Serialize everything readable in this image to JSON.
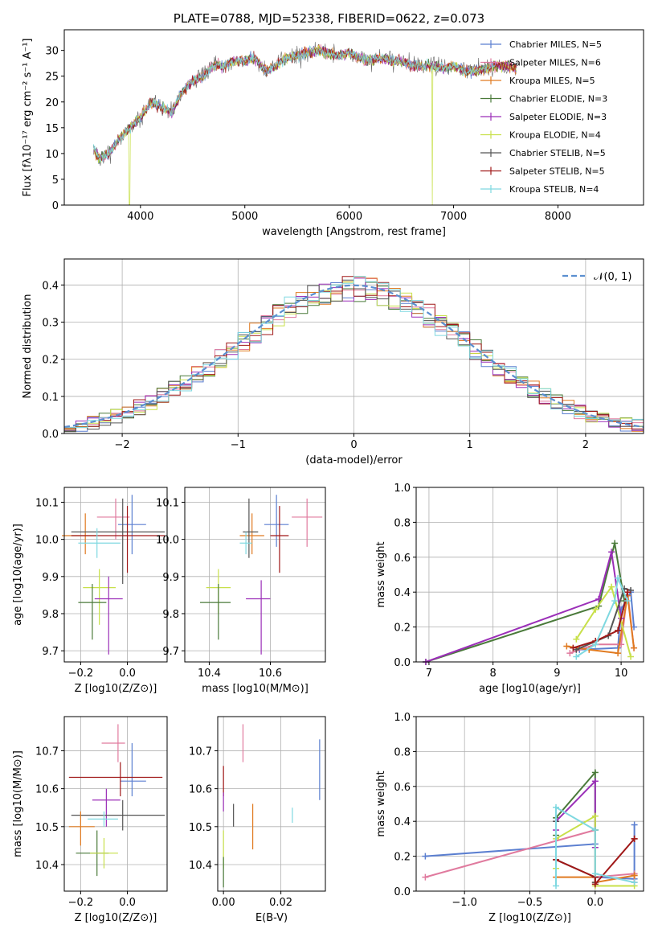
{
  "chart_data": [
    {
      "id": "spectrum",
      "type": "line",
      "title": "PLATE=0788, MJD=52338, FIBERID=0622, z=0.073",
      "xlabel": "wavelength [Angstrom, rest frame]",
      "ylabel": "Flux [fλ10⁻¹⁷ erg cm⁻² s⁻¹ A⁻¹]",
      "xlim": [
        3270,
        8820
      ],
      "ylim": [
        0,
        34
      ],
      "xticks": [
        4000,
        5000,
        6000,
        7000,
        8000
      ],
      "yticks": [
        0,
        5,
        10,
        15,
        20,
        25,
        30
      ],
      "grid": false,
      "legend_position": "top-right",
      "continuum": {
        "x": [
          3550,
          3600,
          3700,
          3800,
          3900,
          4000,
          4100,
          4200,
          4300,
          4400,
          4500,
          4600,
          4700,
          4800,
          4900,
          5000,
          5100,
          5200,
          5300,
          5400,
          5500,
          5600,
          5700,
          5800,
          5900,
          6000,
          6100,
          6200,
          6300,
          6400,
          6500,
          6600,
          6700,
          6800,
          6900,
          7000,
          7100,
          7200,
          7300,
          7400,
          7500,
          7600
        ],
        "y": [
          11,
          9,
          10,
          13,
          15,
          17,
          20,
          19,
          18,
          22,
          24,
          25,
          27,
          27,
          28,
          28,
          28.5,
          26,
          27,
          28.5,
          29,
          29.5,
          30,
          29.5,
          29,
          29.5,
          28.5,
          28,
          28.5,
          28,
          28,
          27,
          27,
          27,
          26.5,
          27,
          26,
          26,
          26.5,
          27,
          27,
          26.5
        ]
      },
      "series": [
        {
          "name": "Chabrier MILES, N_SSP=5",
          "color": "#5b7fd0"
        },
        {
          "name": "Salpeter MILES, N_SSP=6",
          "color": "#e07a9e"
        },
        {
          "name": "Kroupa MILES, N_SSP=5",
          "color": "#e07a20"
        },
        {
          "name": "Chabrier ELODIE, N_SSP=3",
          "color": "#4a7a3a"
        },
        {
          "name": "Salpeter ELODIE, N_SSP=3",
          "color": "#9b2fb8"
        },
        {
          "name": "Kroupa ELODIE, N_SSP=4",
          "color": "#c8e04a"
        },
        {
          "name": "Chabrier STELIB, N_SSP=5",
          "color": "#555555"
        },
        {
          "name": "Salpeter STELIB, N_SSP=5",
          "color": "#a01818"
        },
        {
          "name": "Kroupa STELIB, N_SSP=4",
          "color": "#7fd8e0"
        }
      ]
    },
    {
      "id": "residuals",
      "type": "line",
      "xlabel": "(data-model)/error",
      "ylabel": "Normed distribution",
      "xlim": [
        -2.5,
        2.5
      ],
      "ylim": [
        0,
        0.47
      ],
      "xticks": [
        -2,
        -1,
        0,
        1,
        2
      ],
      "yticks": [
        0.0,
        0.1,
        0.2,
        0.3,
        0.4
      ],
      "grid": true,
      "legend_position": "top-right",
      "legend": "𝒩(0, 1)",
      "gaussian": {
        "mean": 0,
        "sigma": 1,
        "color": "#5b8fd0"
      }
    },
    {
      "id": "age-vs-Z",
      "type": "scatter",
      "xlabel": "Z [log10(Z/Z⊙)]",
      "ylabel": "age  [log10(age/yr)]",
      "xlim": [
        -0.27,
        0.17
      ],
      "ylim": [
        9.67,
        10.14
      ],
      "xticks": [
        -0.2,
        0.0
      ],
      "yticks": [
        9.7,
        9.8,
        9.9,
        10.0,
        10.1
      ],
      "grid": true,
      "points": [
        {
          "x": -0.18,
          "y": 10.01,
          "xerr": [
            0.1,
            0.05
          ],
          "yerr": [
            0.05,
            0.06
          ],
          "series": 2
        },
        {
          "x": -0.05,
          "y": 10.06,
          "xerr": [
            0.08,
            0.06
          ],
          "yerr": [
            0.06,
            0.05
          ],
          "series": 1
        },
        {
          "x": 0.02,
          "y": 10.04,
          "xerr": [
            0.06,
            0.06
          ],
          "yerr": [
            0.08,
            0.08
          ],
          "series": 0
        },
        {
          "x": -0.02,
          "y": 10.02,
          "xerr": [
            0.22,
            0.18
          ],
          "yerr": [
            0.14,
            0.09
          ],
          "series": 6
        },
        {
          "x": 0.0,
          "y": 10.01,
          "xerr": [
            0.24,
            0.16
          ],
          "yerr": [
            0.1,
            0.08
          ],
          "series": 7
        },
        {
          "x": -0.13,
          "y": 9.99,
          "xerr": [
            0.08,
            0.1
          ],
          "yerr": [
            0.04,
            0.04
          ],
          "series": 8
        },
        {
          "x": -0.12,
          "y": 9.87,
          "xerr": [
            0.07,
            0.07
          ],
          "yerr": [
            0.1,
            0.05
          ],
          "series": 5
        },
        {
          "x": -0.08,
          "y": 9.84,
          "xerr": [
            0.06,
            0.06
          ],
          "yerr": [
            0.15,
            0.06
          ],
          "series": 4
        },
        {
          "x": -0.15,
          "y": 9.83,
          "xerr": [
            0.06,
            0.06
          ],
          "yerr": [
            0.1,
            0.05
          ],
          "series": 3
        }
      ]
    },
    {
      "id": "age-vs-mass",
      "type": "scatter",
      "xlabel": "mass [log10(M/M⊙)]",
      "ylabel": "",
      "xlim": [
        10.32,
        10.78
      ],
      "ylim": [
        9.67,
        10.14
      ],
      "xticks": [
        10.4,
        10.6
      ],
      "yticks": [
        9.7,
        9.8,
        9.9,
        10.0,
        10.1
      ],
      "grid": true,
      "points": [
        {
          "x": 10.54,
          "y": 10.01,
          "xerr": [
            0.04,
            0.04
          ],
          "yerr": [
            0.05,
            0.06
          ],
          "series": 2
        },
        {
          "x": 10.72,
          "y": 10.06,
          "xerr": [
            0.05,
            0.05
          ],
          "yerr": [
            0.08,
            0.05
          ],
          "series": 1
        },
        {
          "x": 10.62,
          "y": 10.04,
          "xerr": [
            0.04,
            0.04
          ],
          "yerr": [
            0.06,
            0.08
          ],
          "series": 0
        },
        {
          "x": 10.53,
          "y": 10.02,
          "xerr": [
            0.02,
            0.03
          ],
          "yerr": [
            0.07,
            0.09
          ],
          "series": 6
        },
        {
          "x": 10.63,
          "y": 10.01,
          "xerr": [
            0.03,
            0.03
          ],
          "yerr": [
            0.1,
            0.08
          ],
          "series": 7
        },
        {
          "x": 10.52,
          "y": 9.99,
          "xerr": [
            0.02,
            0.02
          ],
          "yerr": [
            0.03,
            0.03
          ],
          "series": 8
        },
        {
          "x": 10.43,
          "y": 9.87,
          "xerr": [
            0.04,
            0.04
          ],
          "yerr": [
            0.07,
            0.05
          ],
          "series": 5
        },
        {
          "x": 10.57,
          "y": 9.84,
          "xerr": [
            0.05,
            0.03
          ],
          "yerr": [
            0.15,
            0.05
          ],
          "series": 4
        },
        {
          "x": 10.43,
          "y": 9.83,
          "xerr": [
            0.06,
            0.04
          ],
          "yerr": [
            0.1,
            0.05
          ],
          "series": 3
        }
      ]
    },
    {
      "id": "weight-vs-age",
      "type": "line",
      "xlabel": "age  [log10(age/yr)]",
      "ylabel": "mass weight",
      "xlim": [
        6.8,
        10.35
      ],
      "ylim": [
        0,
        1
      ],
      "xticks": [
        7,
        8,
        9,
        10
      ],
      "yticks": [
        0.0,
        0.2,
        0.4,
        0.6,
        0.8,
        1.0
      ],
      "grid": true,
      "series": [
        {
          "series": 0,
          "x": [
            9.35,
            9.95,
            10.0,
            10.15,
            10.2
          ],
          "y": [
            0.07,
            0.08,
            0.3,
            0.4,
            0.2
          ]
        },
        {
          "series": 1,
          "x": [
            9.2,
            9.6,
            10.0,
            10.1,
            10.2
          ],
          "y": [
            0.05,
            0.1,
            0.1,
            0.4,
            0.08
          ]
        },
        {
          "series": 2,
          "x": [
            9.15,
            9.5,
            9.95,
            10.1,
            10.2
          ],
          "y": [
            0.09,
            0.07,
            0.05,
            0.38,
            0.08
          ]
        },
        {
          "series": 3,
          "x": [
            6.95,
            9.65,
            9.9,
            10.05
          ],
          "y": [
            0.0,
            0.32,
            0.68,
            0.35
          ]
        },
        {
          "series": 4,
          "x": [
            6.95,
            9.65,
            9.85,
            10.0
          ],
          "y": [
            0.0,
            0.36,
            0.63,
            0.25
          ]
        },
        {
          "series": 5,
          "x": [
            9.3,
            9.6,
            9.85,
            10.15
          ],
          "y": [
            0.13,
            0.3,
            0.43,
            0.03
          ]
        },
        {
          "series": 6,
          "x": [
            9.3,
            9.8,
            10.05,
            10.15
          ],
          "y": [
            0.07,
            0.15,
            0.42,
            0.41
          ]
        },
        {
          "series": 7,
          "x": [
            9.25,
            9.6,
            9.95,
            10.1
          ],
          "y": [
            0.08,
            0.12,
            0.18,
            0.4
          ]
        },
        {
          "series": 8,
          "x": [
            9.3,
            9.6,
            9.9,
            9.95,
            10.1
          ],
          "y": [
            0.03,
            0.1,
            0.35,
            0.48,
            0.35
          ]
        }
      ]
    },
    {
      "id": "mass-vs-Z",
      "type": "scatter",
      "xlabel": "Z [log10(Z/Z⊙)]",
      "ylabel": "mass [log10(M/M⊙)]",
      "xlim": [
        -0.27,
        0.17
      ],
      "ylim": [
        10.33,
        10.79
      ],
      "xticks": [
        -0.2,
        0.0
      ],
      "yticks": [
        10.4,
        10.5,
        10.6,
        10.7
      ],
      "grid": true,
      "points": [
        {
          "x": -0.04,
          "y": 10.72,
          "xerr": [
            0.07,
            0.03
          ],
          "yerr": [
            0.05,
            0.05
          ],
          "series": 1
        },
        {
          "x": 0.02,
          "y": 10.62,
          "xerr": [
            0.05,
            0.06
          ],
          "yerr": [
            0.04,
            0.1
          ],
          "series": 0
        },
        {
          "x": -0.03,
          "y": 10.63,
          "xerr": [
            0.22,
            0.18
          ],
          "yerr": [
            0.05,
            0.04
          ],
          "series": 7
        },
        {
          "x": -0.09,
          "y": 10.57,
          "xerr": [
            0.06,
            0.06
          ],
          "yerr": [
            0.07,
            0.03
          ],
          "series": 4
        },
        {
          "x": -0.02,
          "y": 10.53,
          "xerr": [
            0.22,
            0.18
          ],
          "yerr": [
            0.04,
            0.04
          ],
          "series": 6
        },
        {
          "x": -0.1,
          "y": 10.52,
          "xerr": [
            0.07,
            0.06
          ],
          "yerr": [
            0.02,
            0.02
          ],
          "series": 8
        },
        {
          "x": -0.2,
          "y": 10.5,
          "xerr": [
            0.05,
            0.06
          ],
          "yerr": [
            0.05,
            0.04
          ],
          "series": 2
        },
        {
          "x": -0.13,
          "y": 10.43,
          "xerr": [
            0.09,
            0.05
          ],
          "yerr": [
            0.06,
            0.06
          ],
          "series": 3
        },
        {
          "x": -0.1,
          "y": 10.43,
          "xerr": [
            0.06,
            0.06
          ],
          "yerr": [
            0.04,
            0.04
          ],
          "series": 5
        }
      ]
    },
    {
      "id": "mass-vs-EBV",
      "type": "scatter",
      "xlabel": "E(B-V)",
      "ylabel": "",
      "xlim": [
        -0.002,
        0.0355
      ],
      "ylim": [
        10.33,
        10.79
      ],
      "xticks": [
        0.0,
        0.02
      ],
      "yticks": [
        10.4,
        10.5,
        10.6,
        10.7
      ],
      "grid": true,
      "points": [
        {
          "x": 0.0,
          "y": 10.62,
          "yerr": [
            0.04,
            0.04
          ],
          "series": 7
        },
        {
          "x": 0.0,
          "y": 10.57,
          "yerr": [
            0.03,
            0.02
          ],
          "series": 4
        },
        {
          "x": 0.0,
          "y": 10.43,
          "yerr": [
            0.04,
            0.06
          ],
          "series": 5
        },
        {
          "x": 0.0,
          "y": 10.38,
          "yerr": [
            0.04,
            0.04
          ],
          "series": 3
        },
        {
          "x": 0.0035,
          "y": 10.53,
          "yerr": [
            0.03,
            0.03
          ],
          "series": 6
        },
        {
          "x": 0.0068,
          "y": 10.72,
          "yerr": [
            0.05,
            0.05
          ],
          "series": 1
        },
        {
          "x": 0.0102,
          "y": 10.5,
          "yerr": [
            0.06,
            0.06
          ],
          "series": 2
        },
        {
          "x": 0.024,
          "y": 10.53,
          "yerr": [
            0.02,
            0.02
          ],
          "series": 8
        },
        {
          "x": 0.0335,
          "y": 10.65,
          "yerr": [
            0.08,
            0.08
          ],
          "series": 0
        }
      ]
    },
    {
      "id": "weight-vs-Z",
      "type": "line",
      "xlabel": "Z [log10(Z/Z⊙)]",
      "ylabel": "mass weight",
      "xlim": [
        -1.37,
        0.37
      ],
      "ylim": [
        0,
        1
      ],
      "xticks": [
        -1.0,
        -0.5,
        0.0
      ],
      "yticks": [
        0.0,
        0.2,
        0.4,
        0.6,
        0.8,
        1.0
      ],
      "grid": true,
      "series": [
        {
          "series": 0,
          "x": [
            -1.3,
            0.0,
            0.0,
            0.3,
            0.3
          ],
          "y": [
            0.2,
            0.27,
            0.08,
            0.07,
            0.38
          ]
        },
        {
          "series": 1,
          "x": [
            -1.3,
            0.0,
            0.0,
            0.3,
            0.3
          ],
          "y": [
            0.08,
            0.35,
            0.08,
            0.1,
            0.05
          ]
        },
        {
          "series": 2,
          "x": [
            -0.3,
            0.0,
            0.0,
            0.3,
            0.3
          ],
          "y": [
            0.08,
            0.08,
            0.05,
            0.09,
            0.09
          ]
        },
        {
          "series": 3,
          "x": [
            -0.3,
            -0.3,
            0.0,
            0.0
          ],
          "y": [
            0.32,
            0.42,
            0.68,
            0.35
          ]
        },
        {
          "series": 4,
          "x": [
            -0.3,
            -0.3,
            0.0,
            0.0
          ],
          "y": [
            0.35,
            0.4,
            0.63,
            0.25
          ]
        },
        {
          "series": 5,
          "x": [
            -0.3,
            -0.3,
            0.0,
            0.0,
            0.3
          ],
          "y": [
            0.13,
            0.3,
            0.43,
            0.03,
            0.03
          ]
        },
        {
          "series": 6,
          "x": [
            -0.3,
            -0.3,
            0.0,
            0.0
          ],
          "y": [
            0.4,
            0.18,
            0.08,
            0.05
          ]
        },
        {
          "series": 7,
          "x": [
            -0.3,
            0.0,
            0.0,
            0.3,
            0.3
          ],
          "y": [
            0.18,
            0.08,
            0.04,
            0.3,
            0.3
          ]
        },
        {
          "series": 8,
          "x": [
            -0.3,
            -0.3,
            0.0,
            0.0,
            0.3
          ],
          "y": [
            0.03,
            0.48,
            0.35,
            0.1,
            0.05
          ]
        }
      ]
    }
  ]
}
